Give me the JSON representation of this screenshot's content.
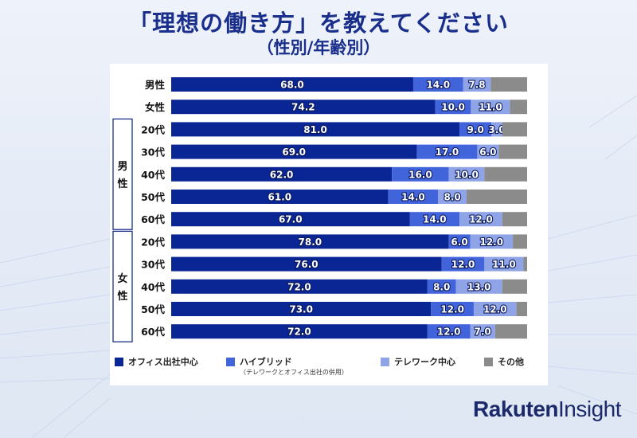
{
  "title": "「理想の働き方」を教えてください",
  "subtitle": "（性別/年齢別）",
  "brand": {
    "name": "Rakuten",
    "sub": "Insight"
  },
  "colors": {
    "office": "#0a2594",
    "hybrid": "#4264db",
    "telework": "#8fa4e6",
    "other": "#8b8b8b"
  },
  "legend": [
    {
      "key": "office",
      "label": "オフィス出社中心",
      "sub": ""
    },
    {
      "key": "hybrid",
      "label": "ハイブリッド",
      "sub": "（テレワークとオフィス出社の併用）"
    },
    {
      "key": "telework",
      "label": "テレワーク中心",
      "sub": ""
    },
    {
      "key": "other",
      "label": "その他",
      "sub": ""
    }
  ],
  "chart_data": {
    "type": "bar",
    "orientation": "horizontal",
    "stacked": true,
    "xlim": [
      0,
      100
    ],
    "groups": [
      {
        "label": "男性",
        "start": 2,
        "end": 6
      },
      {
        "label": "女性",
        "start": 7,
        "end": 11
      }
    ],
    "categories": [
      "男性",
      "女性",
      "20代",
      "30代",
      "40代",
      "50代",
      "60代",
      "20代",
      "30代",
      "40代",
      "50代",
      "60代"
    ],
    "series": [
      {
        "name": "オフィス出社中心",
        "key": "office",
        "values": [
          68.0,
          74.2,
          81.0,
          69.0,
          62.0,
          61.0,
          67.0,
          78.0,
          76.0,
          72.0,
          73.0,
          72.0
        ]
      },
      {
        "name": "ハイブリッド",
        "key": "hybrid",
        "values": [
          14.0,
          10.0,
          9.0,
          17.0,
          16.0,
          14.0,
          14.0,
          6.0,
          12.0,
          8.0,
          12.0,
          12.0
        ]
      },
      {
        "name": "テレワーク中心",
        "key": "telework",
        "values": [
          7.8,
          11.0,
          3.0,
          6.0,
          10.0,
          8.0,
          12.0,
          12.0,
          11.0,
          13.0,
          12.0,
          7.0
        ]
      },
      {
        "name": "その他",
        "key": "other",
        "values": [
          10.2,
          4.8,
          7.0,
          8.0,
          12.0,
          17.0,
          7.0,
          4.0,
          1.0,
          7.0,
          3.0,
          9.0
        ]
      }
    ],
    "label_series": [
      "office",
      "hybrid",
      "telework"
    ]
  }
}
